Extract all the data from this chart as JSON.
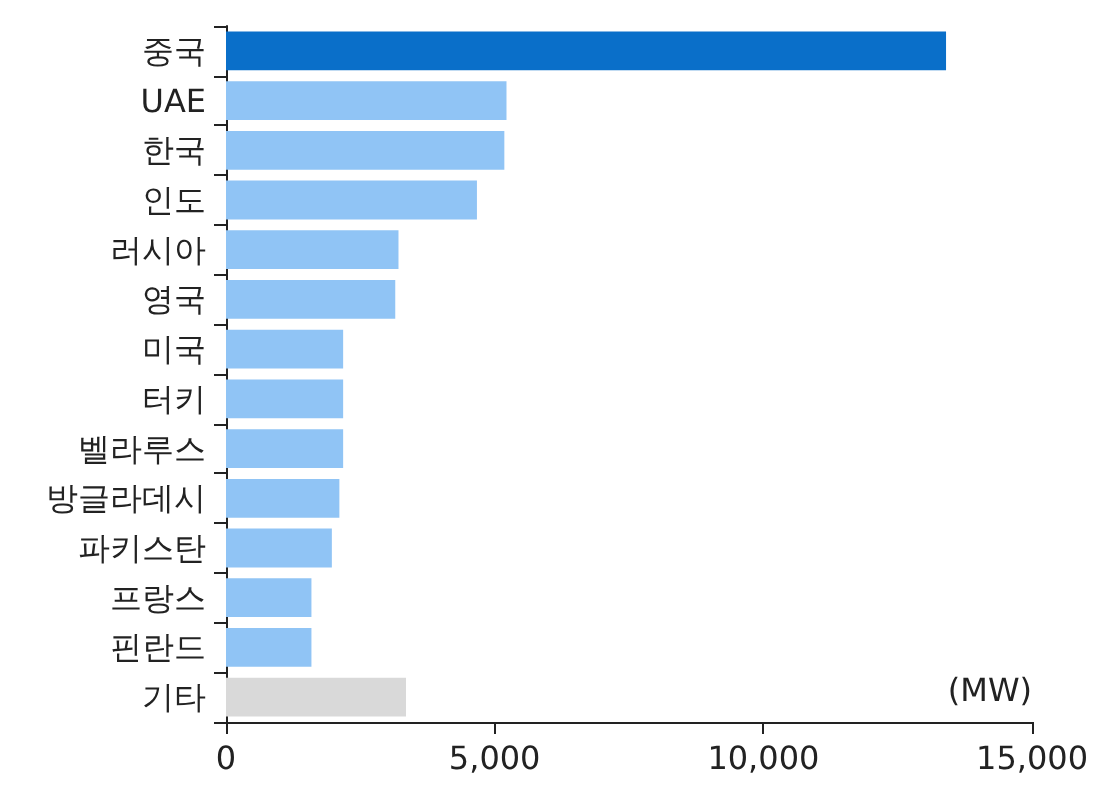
{
  "chart_data": {
    "type": "bar",
    "orientation": "horizontal",
    "xlabel": "(MW)",
    "categories": [
      "중국",
      "UAE",
      "한국",
      "인도",
      "러시아",
      "영국",
      "미국",
      "터키",
      "벨라루스",
      "방글라데시",
      "파키스탄",
      "프랑스",
      "핀란드",
      "기타"
    ],
    "values": [
      13400,
      5220,
      5180,
      4670,
      3210,
      3150,
      2180,
      2180,
      2180,
      2110,
      1970,
      1590,
      1590,
      3350
    ],
    "colors": [
      "#0a6fc9",
      "#90c4f5",
      "#90c4f5",
      "#90c4f5",
      "#90c4f5",
      "#90c4f5",
      "#90c4f5",
      "#90c4f5",
      "#90c4f5",
      "#90c4f5",
      "#90c4f5",
      "#90c4f5",
      "#90c4f5",
      "#d9d9d9"
    ],
    "xlim": [
      0,
      15000
    ],
    "xticks": [
      0,
      {
        "value": 5000,
        "label": "5,000"
      },
      {
        "value": 10000,
        "label": "10,000"
      },
      {
        "value": 15000,
        "label": "15,000"
      }
    ],
    "grid": false
  }
}
